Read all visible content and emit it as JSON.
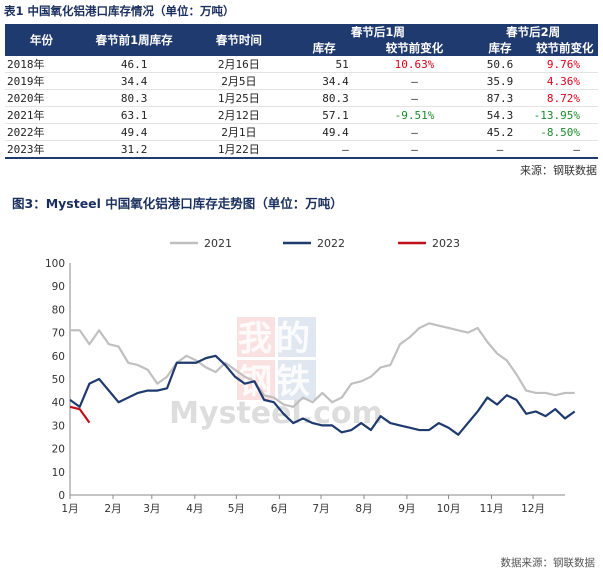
{
  "table_caption": "表1 中国氧化铝港口库存情况（单位：万吨）",
  "table": {
    "headers": {
      "year": "年份",
      "pre_week": "春节前1周库存",
      "date": "春节时间",
      "after1": "春节后1周",
      "after2": "春节后2周",
      "stock": "库存",
      "change": "较节前变化"
    },
    "rows": [
      {
        "year": "2018年",
        "pre": "46.1",
        "date": "2月16日",
        "s1": "51",
        "c1": "10.63%",
        "c1_color": "red",
        "s2": "50.6",
        "c2": "9.76%",
        "c2_color": "red"
      },
      {
        "year": "2019年",
        "pre": "34.4",
        "date": "2月5日",
        "s1": "34.4",
        "c1": "–",
        "c1_color": "",
        "s2": "35.9",
        "c2": "4.36%",
        "c2_color": "red"
      },
      {
        "year": "2020年",
        "pre": "80.3",
        "date": "1月25日",
        "s1": "80.3",
        "c1": "–",
        "c1_color": "",
        "s2": "87.3",
        "c2": "8.72%",
        "c2_color": "red"
      },
      {
        "year": "2021年",
        "pre": "63.1",
        "date": "2月12日",
        "s1": "57.1",
        "c1": "-9.51%",
        "c1_color": "green",
        "s2": "54.3",
        "c2": "-13.95%",
        "c2_color": "green"
      },
      {
        "year": "2022年",
        "pre": "49.4",
        "date": "2月1日",
        "s1": "49.4",
        "c1": "–",
        "c1_color": "",
        "s2": "45.2",
        "c2": "-8.50%",
        "c2_color": "green"
      },
      {
        "year": "2023年",
        "pre": "31.2",
        "date": "1月22日",
        "s1": "–",
        "c1": "–",
        "c1_color": "",
        "s2": "–",
        "c2": "–",
        "c2_color": ""
      }
    ]
  },
  "table_source": "来源：钢联数据",
  "chart_caption": "图3：Mysteel 中国氧化铝港口库存走势图（单位：万吨）",
  "chart_source": "数据来源：钢联数据",
  "watermark": {
    "line1": "我的",
    "line2": "钢铁",
    "brand": "Mysteel.com"
  },
  "chart_data": {
    "type": "line",
    "ylim": [
      0,
      100
    ],
    "yticks": [
      0,
      10,
      20,
      30,
      40,
      50,
      60,
      70,
      80,
      90,
      100
    ],
    "xlim": [
      0,
      51
    ],
    "xtick_labels": [
      "1月",
      "2月",
      "3月",
      "4月",
      "5月",
      "6月",
      "7月",
      "8月",
      "9月",
      "10月",
      "11月",
      "12月"
    ],
    "xtick_positions": [
      0,
      4.43,
      8.43,
      12.86,
      17.14,
      21.57,
      25.86,
      30.29,
      34.71,
      39,
      43.43,
      47.71
    ],
    "grid": false,
    "legend_position": "top",
    "series": [
      {
        "name": "2021",
        "color": "#c0c0c0",
        "values": [
          71,
          71,
          65,
          71,
          65,
          64,
          57,
          56,
          54,
          48,
          51,
          57,
          60,
          58,
          55,
          53,
          57,
          54,
          51,
          49,
          43,
          42,
          39,
          38,
          42,
          40,
          44,
          40,
          42,
          48,
          49,
          51,
          55,
          56,
          65,
          68,
          72,
          74,
          73,
          72,
          71,
          70,
          72,
          66,
          61,
          58,
          52,
          45,
          44,
          44,
          43,
          44,
          44
        ]
      },
      {
        "name": "2022",
        "color": "#1f3a6e",
        "values": [
          41,
          38,
          48,
          50,
          45,
          40,
          42,
          44,
          45,
          45,
          46,
          57,
          57,
          57,
          59,
          60,
          56,
          51,
          48,
          49,
          41,
          40,
          35,
          31,
          33,
          31,
          30,
          30,
          27,
          28,
          31,
          28,
          34,
          31,
          30,
          29,
          28,
          28,
          31,
          29,
          26,
          31,
          36,
          42,
          39,
          43,
          41,
          35,
          36,
          34,
          37,
          33,
          36
        ]
      },
      {
        "name": "2023",
        "color": "#c0101a",
        "values": [
          38,
          37,
          31.2
        ]
      }
    ]
  }
}
